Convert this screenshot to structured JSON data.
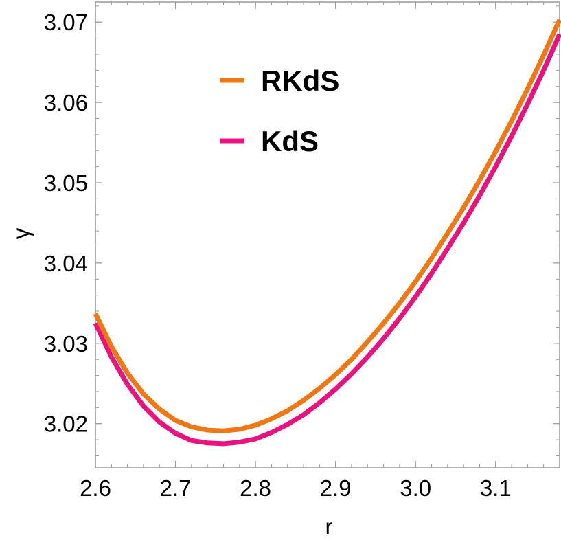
{
  "chart_data": {
    "type": "line",
    "title": "",
    "xlabel": "r",
    "ylabel": "γ",
    "xlim": [
      2.6,
      3.18
    ],
    "ylim": [
      3.0145,
      3.0725
    ],
    "xticks": [
      2.6,
      2.7,
      2.8,
      2.9,
      3.0,
      3.1
    ],
    "xtick_labels": [
      "2.6",
      "2.7",
      "2.8",
      "2.9",
      "3.0",
      "3.1"
    ],
    "yticks": [
      3.02,
      3.03,
      3.04,
      3.05,
      3.06,
      3.07
    ],
    "ytick_labels": [
      "3.02",
      "3.03",
      "3.04",
      "3.05",
      "3.06",
      "3.07"
    ],
    "grid": false,
    "legend_position": "top-left, inside",
    "series": [
      {
        "name": "RKdS",
        "color": "#f07814",
        "x": [
          2.6,
          2.62,
          2.64,
          2.66,
          2.68,
          2.7,
          2.72,
          2.74,
          2.76,
          2.78,
          2.8,
          2.82,
          2.84,
          2.86,
          2.88,
          2.9,
          2.92,
          2.94,
          2.96,
          2.98,
          3.0,
          3.02,
          3.04,
          3.06,
          3.08,
          3.1,
          3.12,
          3.14,
          3.16,
          3.18
        ],
        "y": [
          3.0337,
          3.0296,
          3.0263,
          3.0237,
          3.0218,
          3.0204,
          3.0196,
          3.0192,
          3.0191,
          3.0193,
          3.0198,
          3.0206,
          3.0216,
          3.0229,
          3.0244,
          3.0261,
          3.028,
          3.0302,
          3.0325,
          3.035,
          3.0377,
          3.0406,
          3.0437,
          3.0469,
          3.0503,
          3.0539,
          3.0577,
          3.0617,
          3.0659,
          3.0703
        ]
      },
      {
        "name": "KdS",
        "color": "#e8137f",
        "x": [
          2.6,
          2.62,
          2.64,
          2.66,
          2.68,
          2.7,
          2.72,
          2.74,
          2.76,
          2.78,
          2.8,
          2.82,
          2.84,
          2.86,
          2.88,
          2.9,
          2.92,
          2.94,
          2.96,
          2.98,
          3.0,
          3.02,
          3.04,
          3.06,
          3.08,
          3.1,
          3.12,
          3.14,
          3.16,
          3.18
        ],
        "y": [
          3.0325,
          3.0283,
          3.0249,
          3.0222,
          3.0202,
          3.0188,
          3.0179,
          3.0176,
          3.0175,
          3.0177,
          3.0181,
          3.0189,
          3.0199,
          3.0211,
          3.0226,
          3.0243,
          3.0262,
          3.0283,
          3.0306,
          3.0331,
          3.0358,
          3.0387,
          3.0418,
          3.045,
          3.0484,
          3.052,
          3.0558,
          3.0598,
          3.064,
          3.0685
        ]
      }
    ]
  }
}
